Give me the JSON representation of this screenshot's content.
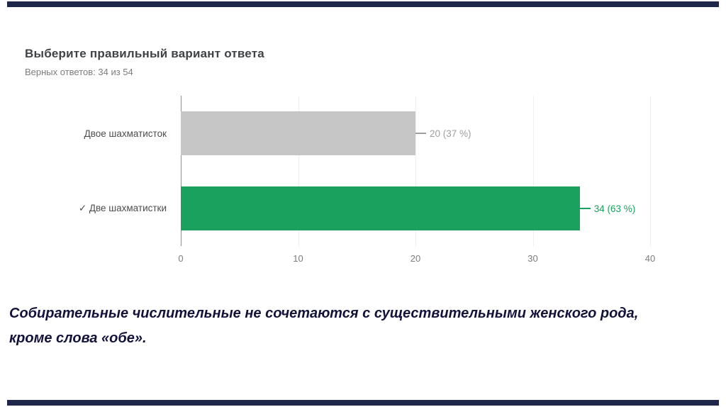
{
  "slide": {
    "border_color": "#1e2749"
  },
  "chart_data": {
    "type": "bar",
    "orientation": "horizontal",
    "title": "Выберите правильный вариант ответа",
    "subtitle": "Верных ответов: 34 из 54",
    "categories": [
      "Двое шахматисток",
      "✓ Две шахматистки"
    ],
    "values": [
      20,
      34
    ],
    "data_labels": [
      "20 (37 %)",
      "34 (63 %)"
    ],
    "bar_colors": [
      "#c6c6c6",
      "#1aa15d"
    ],
    "label_colors": [
      "#9e9e9e",
      "#1aa15d"
    ],
    "xlabel": "",
    "ylabel": "",
    "xlim": [
      0,
      40
    ],
    "x_ticks": [
      "0",
      "10",
      "20",
      "30",
      "40"
    ],
    "grid": true,
    "legend": "none"
  },
  "note": {
    "text": "Собирательные числительные не сочетаются с существительными женского рода, кроме слова «обе»."
  }
}
